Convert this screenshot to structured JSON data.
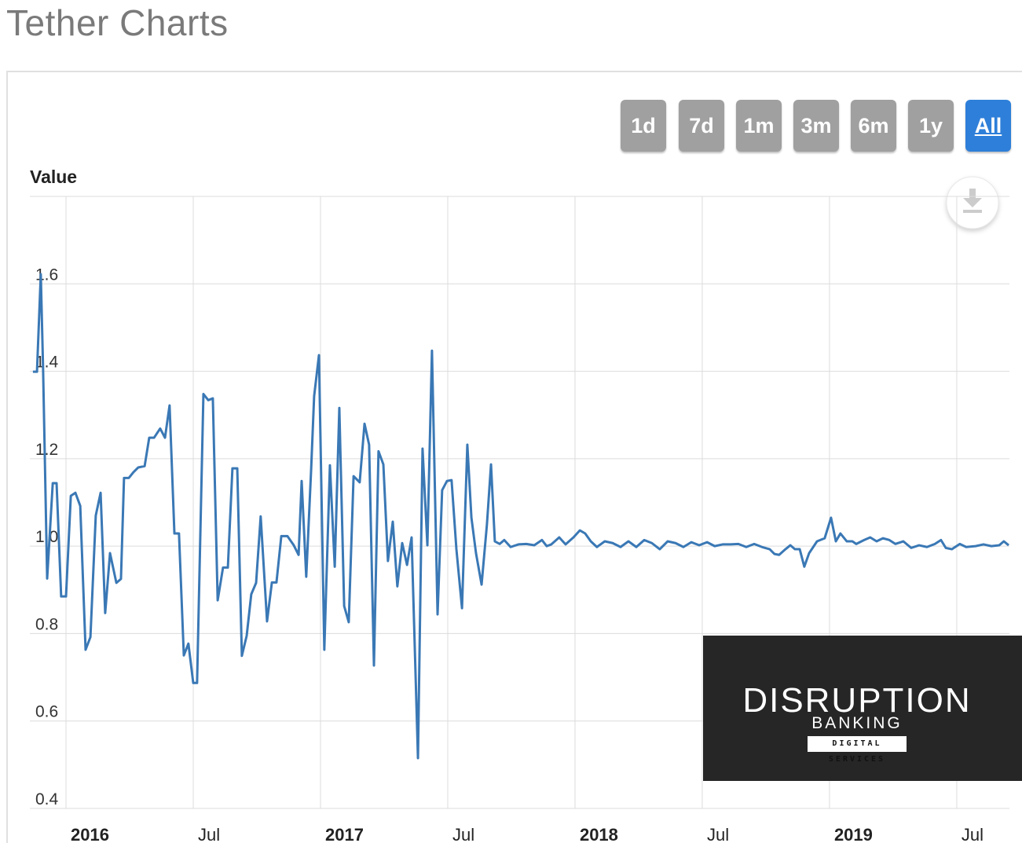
{
  "page_title": "Tether Charts",
  "range_buttons": [
    "1d",
    "7d",
    "1m",
    "3m",
    "6m",
    "1y",
    "All"
  ],
  "selected_range": 6,
  "watermark": {
    "title": "DISRUPTION",
    "subtitle": "BANKING",
    "tagline": "DIGITAL SERVICES"
  },
  "chart_data": {
    "type": "line",
    "y_label": "Value",
    "color": "#3a78b5",
    "grid": true,
    "xlim": [
      2015.858,
      2019.707
    ],
    "xticks": [
      {
        "value": 2016,
        "label": "2016"
      },
      {
        "value": 2016.5,
        "label": "Jul"
      },
      {
        "value": 2017,
        "label": "2017"
      },
      {
        "value": 2017.5,
        "label": "Jul"
      },
      {
        "value": 2018,
        "label": "2018"
      },
      {
        "value": 2018.5,
        "label": "Jul"
      },
      {
        "value": 2019,
        "label": "2019"
      },
      {
        "value": 2019.5,
        "label": "Jul"
      }
    ],
    "ylim": [
      0.4,
      1.8
    ],
    "yticks": [
      0.4,
      0.6,
      0.8,
      {
        "value": 1,
        "label": "1.0"
      },
      1.2,
      1.4,
      1.6
    ],
    "x": [
      2015.87,
      2015.886,
      2015.901,
      2015.91,
      2015.926,
      2015.948,
      2015.963,
      2015.981,
      2016.0,
      2016.019,
      2016.037,
      2016.056,
      2016.077,
      2016.096,
      2016.117,
      2016.136,
      2016.154,
      2016.173,
      2016.198,
      2016.216,
      2016.228,
      2016.247,
      2016.265,
      2016.284,
      2016.309,
      2016.327,
      2016.346,
      2016.37,
      2016.389,
      2016.407,
      2016.426,
      2016.444,
      2016.463,
      2016.481,
      2016.5,
      2016.515,
      2016.54,
      2016.559,
      2016.577,
      2016.596,
      2016.617,
      2016.636,
      2016.654,
      2016.673,
      2016.691,
      2016.71,
      2016.728,
      2016.747,
      2016.765,
      2016.79,
      2016.809,
      2016.827,
      2016.846,
      2016.87,
      2016.895,
      2016.914,
      2016.926,
      2016.944,
      2016.963,
      2016.975,
      2016.994,
      2017.015,
      2017.037,
      2017.056,
      2017.074,
      2017.093,
      2017.111,
      2017.13,
      2017.154,
      2017.173,
      2017.191,
      2017.21,
      2017.228,
      2017.247,
      2017.265,
      2017.284,
      2017.302,
      2017.321,
      2017.34,
      2017.358,
      2017.383,
      2017.401,
      2017.42,
      2017.438,
      2017.46,
      2017.478,
      2017.497,
      2017.515,
      2017.534,
      2017.556,
      2017.577,
      2017.593,
      2017.611,
      2017.633,
      2017.654,
      2017.67,
      2017.685,
      2017.704,
      2017.722,
      2017.747,
      2017.778,
      2017.809,
      2017.84,
      2017.87,
      2017.889,
      2017.907,
      2017.938,
      2017.963,
      2017.994,
      2018.019,
      2018.04,
      2018.062,
      2018.086,
      2018.117,
      2018.148,
      2018.179,
      2018.21,
      2018.241,
      2018.272,
      2018.302,
      2018.333,
      2018.364,
      2018.395,
      2018.426,
      2018.457,
      2018.488,
      2018.519,
      2018.549,
      2018.58,
      2018.611,
      2018.642,
      2018.673,
      2018.704,
      2018.735,
      2018.765,
      2018.784,
      2018.802,
      2018.827,
      2018.846,
      2018.864,
      2018.883,
      2018.901,
      2018.92,
      2018.951,
      2018.981,
      2019.006,
      2019.025,
      2019.043,
      2019.068,
      2019.09,
      2019.105,
      2019.136,
      2019.16,
      2019.185,
      2019.21,
      2019.235,
      2019.259,
      2019.29,
      2019.321,
      2019.352,
      2019.383,
      2019.414,
      2019.438,
      2019.457,
      2019.481,
      2019.512,
      2019.537,
      2019.574,
      2019.605,
      2019.636,
      2019.667,
      2019.685,
      2019.704
    ],
    "values": [
      1.399,
      1.399,
      1.622,
      1.406,
      0.926,
      1.144,
      1.144,
      0.885,
      0.885,
      1.115,
      1.122,
      1.092,
      0.763,
      0.792,
      1.07,
      1.122,
      0.847,
      0.984,
      0.916,
      0.925,
      1.156,
      1.156,
      1.169,
      1.18,
      1.183,
      1.248,
      1.248,
      1.269,
      1.248,
      1.322,
      1.029,
      1.029,
      0.75,
      0.777,
      0.687,
      0.687,
      1.348,
      1.334,
      1.338,
      0.876,
      0.951,
      0.951,
      1.178,
      1.178,
      0.749,
      0.795,
      0.89,
      0.916,
      1.068,
      0.828,
      0.917,
      0.917,
      1.023,
      1.023,
      1.002,
      0.98,
      1.149,
      0.93,
      1.172,
      1.343,
      1.437,
      0.763,
      1.185,
      0.953,
      1.316,
      0.863,
      0.826,
      1.16,
      1.146,
      1.28,
      1.232,
      0.727,
      1.217,
      1.187,
      0.966,
      1.056,
      0.908,
      1.007,
      0.957,
      1.02,
      0.515,
      1.223,
      1.002,
      1.447,
      0.844,
      1.128,
      1.149,
      1.151,
      0.993,
      0.858,
      1.232,
      1.065,
      0.984,
      0.912,
      1.05,
      1.187,
      1.011,
      1.005,
      1.014,
      0.998,
      1.004,
      1.005,
      1.002,
      1.014,
      1.0,
      1.004,
      1.02,
      1.004,
      1.02,
      1.036,
      1.029,
      1.011,
      0.998,
      1.011,
      1.007,
      0.998,
      1.011,
      0.998,
      1.014,
      1.007,
      0.993,
      1.011,
      1.007,
      0.998,
      1.009,
      1.002,
      1.009,
      1.0,
      1.004,
      1.004,
      1.005,
      0.998,
      1.005,
      0.998,
      0.993,
      0.982,
      0.98,
      0.993,
      1.002,
      0.993,
      0.993,
      0.953,
      0.984,
      1.011,
      1.018,
      1.065,
      1.011,
      1.029,
      1.011,
      1.011,
      1.005,
      1.014,
      1.02,
      1.011,
      1.018,
      1.014,
      1.005,
      1.011,
      0.996,
      1.002,
      0.998,
      1.005,
      1.014,
      0.996,
      0.993,
      1.005,
      0.998,
      1.0,
      1.004,
      1.0,
      1.002,
      1.011,
      1.002
    ]
  }
}
